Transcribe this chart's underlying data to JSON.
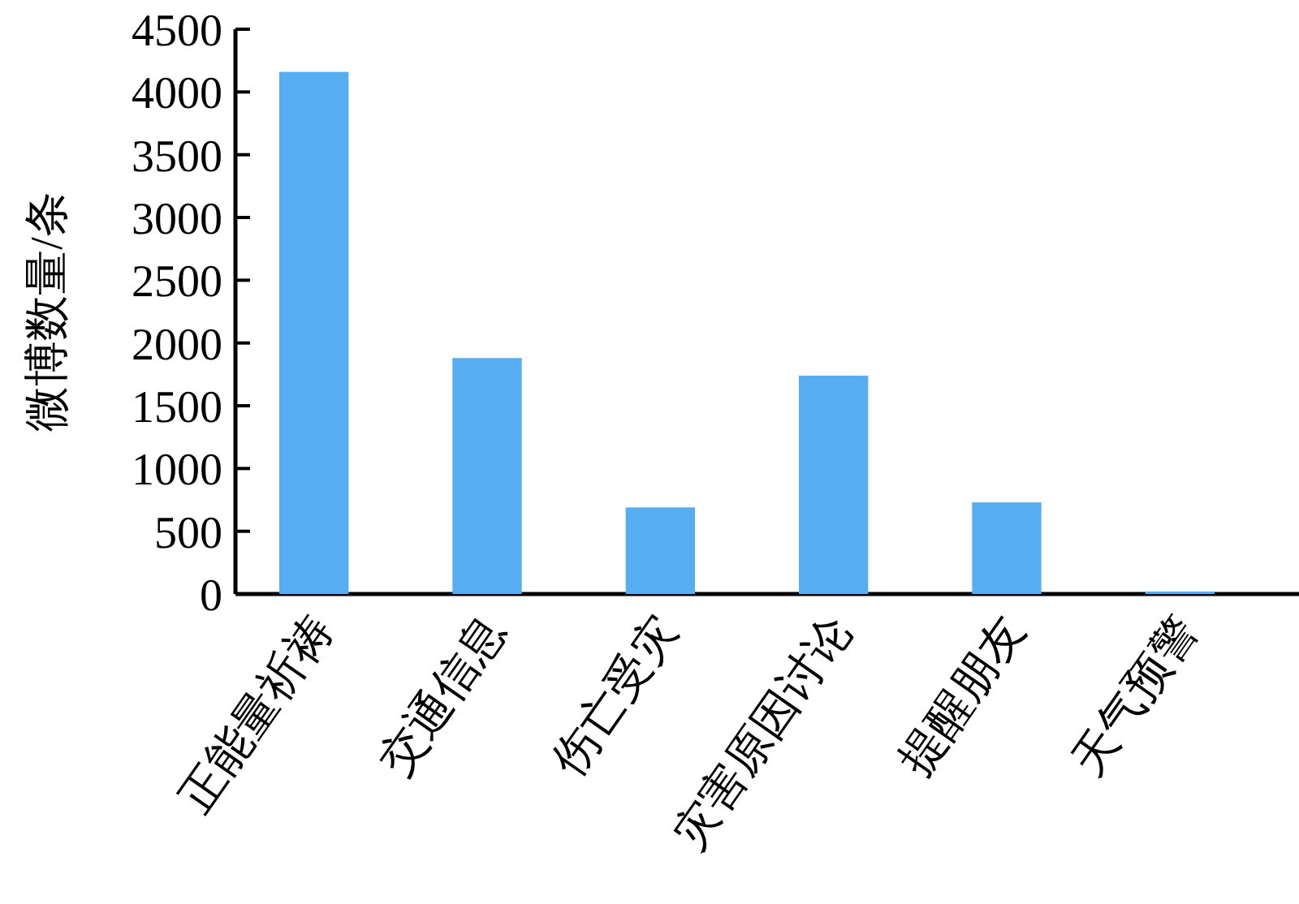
{
  "chart_data": {
    "type": "bar",
    "ylabel": "微博数量/条",
    "categories": [
      "正能量祈祷",
      "交通信息",
      "伤亡受灾",
      "灾害原因讨论",
      "提醒朋友",
      "天气预警"
    ],
    "values": [
      4160,
      1880,
      690,
      1740,
      730,
      20
    ],
    "color": "#56adf2",
    "ylim": [
      0,
      4500
    ],
    "yticks": [
      0,
      500,
      1000,
      1500,
      2000,
      2500,
      3000,
      3500,
      4000,
      4500
    ]
  }
}
